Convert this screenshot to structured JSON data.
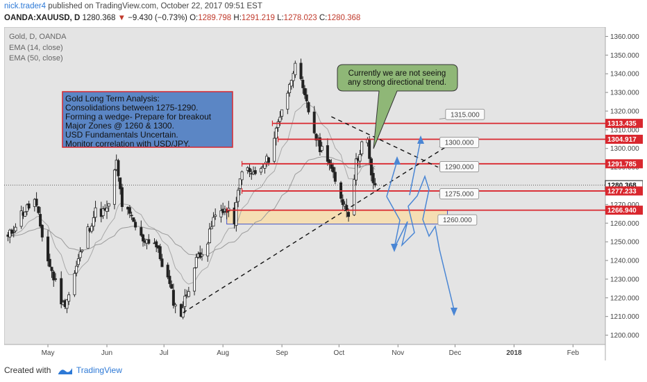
{
  "header": {
    "user": "nick.trader4",
    "published": "published on TradingView.com, October 22, 2017 09:51 EST",
    "symbol": "OANDA:XAUUSD, D",
    "last": "1280.368",
    "change": "−9.430 (−0.73%)",
    "o_label": "O:",
    "o": "1289.798",
    "h_label": "H:",
    "h": "1291.219",
    "l_label": "L:",
    "l": "1278.023",
    "c_label": "C:",
    "c": "1280.368"
  },
  "legend": [
    "Gold, D, OANDA",
    "EMA (14, close)",
    "EMA (50, close)"
  ],
  "analysis_box": [
    "Gold Long Term Analysis:",
    "Consolidations between 1275-1290.",
    "Forming a wedge- Prepare for breakout",
    "Major Zones @ 1260 & 1300.",
    "USD Fundamentals Uncertain.",
    "Monitor correlation with USD/JPY."
  ],
  "callout": [
    "Currently we are not seeing",
    "any strong directional trend."
  ],
  "footer": {
    "created_with": "Created with",
    "brand": "TradingView"
  },
  "chart_data": {
    "type": "candlestick",
    "title": "Gold, D, OANDA",
    "y_ticks": [
      1200,
      1210,
      1220,
      1230,
      1240,
      1250,
      1260,
      1270,
      1280,
      1290,
      1300,
      1310,
      1320,
      1330,
      1340,
      1350,
      1360
    ],
    "y_tick_labels": [
      "1200.000",
      "1210.000",
      "1220.000",
      "1230.000",
      "1240.000",
      "1250.000",
      "1260.000",
      "1270.000",
      "1280.000",
      "1290.000",
      "1300.000",
      "1310.000",
      "1320.000",
      "1330.000",
      "1340.000",
      "1350.000",
      "1360.000"
    ],
    "ylim": [
      1195,
      1365
    ],
    "x_labels": [
      "May",
      "Jun",
      "Jul",
      "Aug",
      "Sep",
      "Oct",
      "Nov",
      "Dec",
      "2018",
      "Feb"
    ],
    "x_label_dates": [
      "2017-05-01",
      "2017-06-01",
      "2017-07-01",
      "2017-08-01",
      "2017-09-01",
      "2017-10-01",
      "2017-11-01",
      "2017-12-01",
      "2018-01-01",
      "2018-02-01"
    ],
    "x_range": [
      "2017-04-08",
      "2018-02-18"
    ],
    "closes": [
      [
        "2017-04-10",
        1252
      ],
      [
        "2017-04-17",
        1265
      ],
      [
        "2017-04-24",
        1272
      ],
      [
        "2017-05-01",
        1240
      ],
      [
        "2017-05-05",
        1228
      ],
      [
        "2017-05-09",
        1216
      ],
      [
        "2017-05-12",
        1222
      ],
      [
        "2017-05-17",
        1240
      ],
      [
        "2017-05-22",
        1256
      ],
      [
        "2017-05-26",
        1266
      ],
      [
        "2017-06-01",
        1266
      ],
      [
        "2017-06-06",
        1292
      ],
      [
        "2017-06-09",
        1270
      ],
      [
        "2017-06-14",
        1262
      ],
      [
        "2017-06-19",
        1252
      ],
      [
        "2017-06-26",
        1250
      ],
      [
        "2017-07-03",
        1230
      ],
      [
        "2017-07-07",
        1215
      ],
      [
        "2017-07-10",
        1212
      ],
      [
        "2017-07-14",
        1226
      ],
      [
        "2017-07-19",
        1243
      ],
      [
        "2017-07-24",
        1250
      ],
      [
        "2017-07-27",
        1262
      ],
      [
        "2017-08-01",
        1268
      ],
      [
        "2017-08-07",
        1262
      ],
      [
        "2017-08-11",
        1290
      ],
      [
        "2017-08-16",
        1286
      ],
      [
        "2017-08-21",
        1288
      ],
      [
        "2017-08-25",
        1295
      ],
      [
        "2017-08-29",
        1310
      ],
      [
        "2017-09-01",
        1322
      ],
      [
        "2017-09-05",
        1333
      ],
      [
        "2017-09-08",
        1348
      ],
      [
        "2017-09-12",
        1330
      ],
      [
        "2017-09-15",
        1320
      ],
      [
        "2017-09-20",
        1302
      ],
      [
        "2017-09-25",
        1296
      ],
      [
        "2017-09-29",
        1281
      ],
      [
        "2017-10-03",
        1272
      ],
      [
        "2017-10-06",
        1266
      ],
      [
        "2017-10-10",
        1292
      ],
      [
        "2017-10-13",
        1303
      ],
      [
        "2017-10-16",
        1303
      ],
      [
        "2017-10-18",
        1284
      ],
      [
        "2017-10-20",
        1280.368
      ]
    ],
    "horizontal_levels": [
      {
        "label": "1313.435",
        "value": 1313.435,
        "color": "#d9272e"
      },
      {
        "label": "1304.917",
        "value": 1304.917,
        "color": "#d9272e"
      },
      {
        "label": "1291.785",
        "value": 1291.785,
        "color": "#d9272e"
      },
      {
        "label": "1280.368",
        "value": 1280.368,
        "color": "#111111"
      },
      {
        "label": "1277.233",
        "value": 1277.233,
        "color": "#d9272e"
      },
      {
        "label": "1266.940",
        "value": 1266.94,
        "color": "#d9272e"
      }
    ],
    "target_labels": [
      "1315.000",
      "1300.000",
      "1290.000",
      "1275.000",
      "1260.000"
    ],
    "target_values": [
      1315,
      1300,
      1290,
      1275,
      1260
    ],
    "zone": {
      "from": 1259.5,
      "to": 1267,
      "color": "#f5deb3"
    },
    "trendlines": [
      {
        "name": "wedge-support",
        "from": [
          "2017-07-11",
          1212
        ],
        "to": [
          "2017-11-28",
          1302
        ]
      },
      {
        "name": "wedge-resistance",
        "from": [
          "2017-09-27",
          1317
        ],
        "to": [
          "2017-11-22",
          1290
        ]
      }
    ],
    "colors": {
      "bg": "#e4e4e4",
      "candle": "#222222",
      "ema14": "#a8a8a8",
      "ema50": "#9a9a9a",
      "arrows": "#4a86d4",
      "box_fill": "#5b86c5",
      "box_border": "#d9272e",
      "callout_fill": "#8fb777"
    }
  }
}
